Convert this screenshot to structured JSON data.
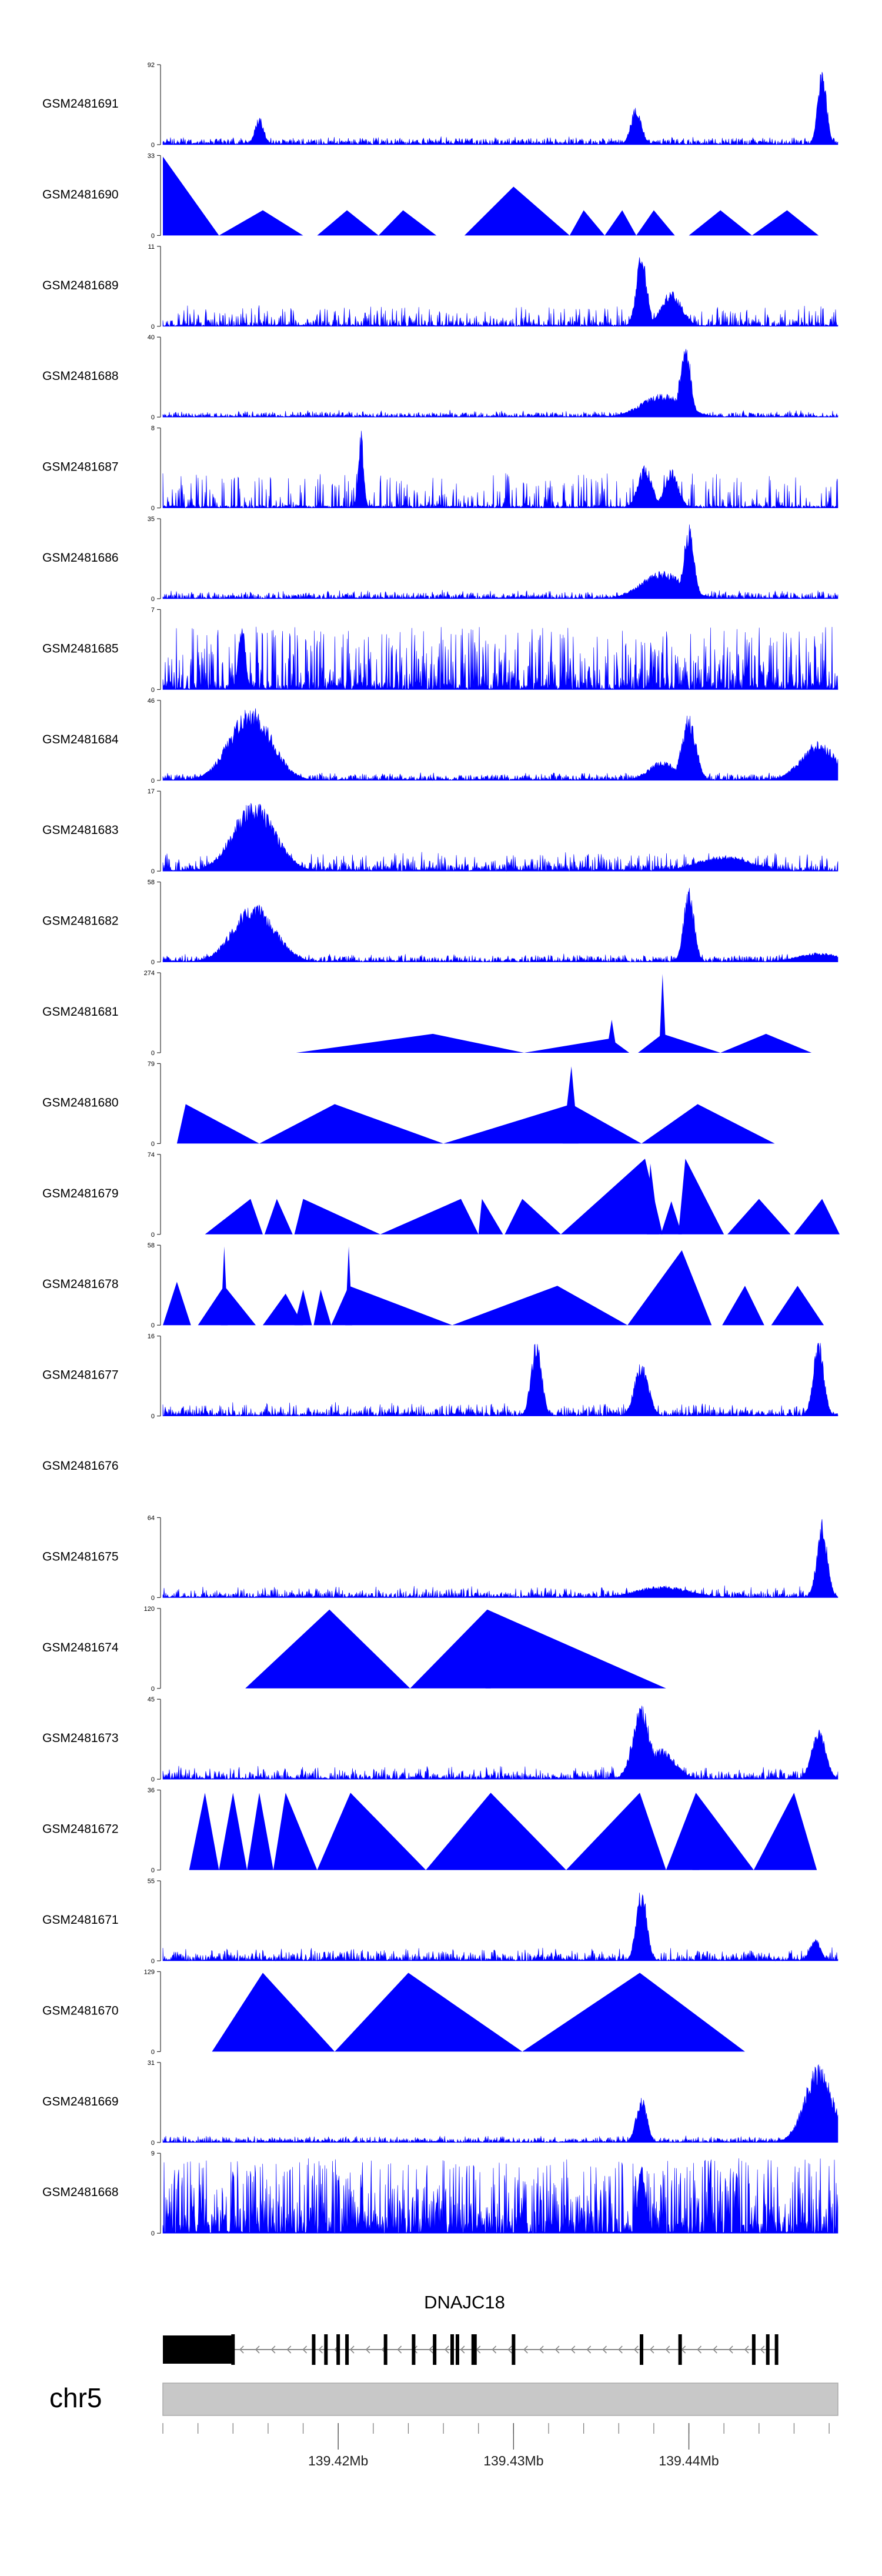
{
  "chart_data": {
    "type": "area",
    "title": "",
    "colors": {
      "track": "#0000ff",
      "gene": "#000000",
      "chrom_bar": "#c8c8c8",
      "axis": "#333333"
    },
    "x_range_mb": [
      139.41,
      139.4485
    ],
    "tracks": [
      {
        "name": "GSM2481691",
        "ymax_label": "92",
        "ymin_label": "0",
        "style": "noise",
        "base": 0.04,
        "noise": 0.05,
        "density": 0.6,
        "seed": 11,
        "peaks": [
          [
            139.4155,
            0.36,
            0.00025
          ],
          [
            139.437,
            0.5,
            0.0003
          ],
          [
            139.4476,
            1.0,
            0.00025
          ]
        ]
      },
      {
        "name": "GSM2481690",
        "ymax_label": "33",
        "ymin_label": "0",
        "style": "triangles",
        "triangles": [
          [
            139.41,
            139.41,
            139.4132,
            1.0
          ],
          [
            139.4132,
            139.4157,
            139.418,
            0.32
          ],
          [
            139.4188,
            139.4205,
            139.4223,
            0.32
          ],
          [
            139.4223,
            139.4237,
            139.4256,
            0.32
          ],
          [
            139.4272,
            139.43,
            139.4332,
            0.62
          ],
          [
            139.4332,
            139.434,
            139.4352,
            0.32
          ],
          [
            139.4352,
            139.4362,
            139.437,
            0.32
          ],
          [
            139.437,
            139.438,
            139.4392,
            0.32
          ],
          [
            139.44,
            139.4418,
            139.4436,
            0.32
          ],
          [
            139.4436,
            139.4456,
            139.4474,
            0.32
          ]
        ]
      },
      {
        "name": "GSM2481689",
        "ymax_label": "11",
        "ymin_label": "0",
        "style": "noise",
        "base": 0.05,
        "noise": 0.2,
        "density": 0.45,
        "seed": 23,
        "peaks": [
          [
            139.4373,
            0.95,
            0.0003
          ],
          [
            139.439,
            0.45,
            0.0006
          ]
        ]
      },
      {
        "name": "GSM2481688",
        "ymax_label": "40",
        "ymin_label": "0",
        "style": "noise",
        "base": 0.03,
        "noise": 0.05,
        "density": 0.5,
        "seed": 37,
        "peaks": [
          [
            139.4385,
            0.3,
            0.0012
          ],
          [
            139.4398,
            1.0,
            0.0003
          ]
        ]
      },
      {
        "name": "GSM2481687",
        "ymax_label": "8",
        "ymin_label": "0",
        "style": "spiky",
        "base": 0.02,
        "noise": 0.42,
        "density": 0.35,
        "seed": 41,
        "peaks": [
          [
            139.4213,
            1.0,
            0.00015
          ],
          [
            139.4375,
            0.55,
            0.0004
          ],
          [
            139.439,
            0.5,
            0.0004
          ]
        ]
      },
      {
        "name": "GSM2481686",
        "ymax_label": "35",
        "ymin_label": "0",
        "style": "noise",
        "base": 0.04,
        "noise": 0.06,
        "density": 0.5,
        "seed": 53,
        "peaks": [
          [
            139.4385,
            0.35,
            0.0012
          ],
          [
            139.44,
            0.95,
            0.0003
          ]
        ]
      },
      {
        "name": "GSM2481685",
        "ymax_label": "7",
        "ymin_label": "0",
        "style": "spiky",
        "base": 0.05,
        "noise": 0.75,
        "density": 0.65,
        "seed": 67,
        "peaks": [
          [
            139.4145,
            0.9,
            0.0002
          ]
        ]
      },
      {
        "name": "GSM2481684",
        "ymax_label": "46",
        "ymin_label": "0",
        "style": "noise",
        "base": 0.04,
        "noise": 0.05,
        "density": 0.55,
        "seed": 71,
        "peaks": [
          [
            139.415,
            0.95,
            0.0012
          ],
          [
            139.4385,
            0.25,
            0.0008
          ],
          [
            139.44,
            0.85,
            0.0004
          ],
          [
            139.4474,
            0.5,
            0.001
          ]
        ]
      },
      {
        "name": "GSM2481683",
        "ymax_label": "17",
        "ymin_label": "0",
        "style": "noise",
        "base": 0.05,
        "noise": 0.18,
        "density": 0.55,
        "seed": 83,
        "peaks": [
          [
            139.4152,
            0.9,
            0.0012
          ],
          [
            139.442,
            0.2,
            0.0015
          ]
        ]
      },
      {
        "name": "GSM2481682",
        "ymax_label": "58",
        "ymin_label": "0",
        "style": "noise",
        "base": 0.04,
        "noise": 0.05,
        "density": 0.5,
        "seed": 97,
        "peaks": [
          [
            139.4152,
            0.75,
            0.0012
          ],
          [
            139.44,
            0.95,
            0.0003
          ],
          [
            139.4474,
            0.12,
            0.0012
          ]
        ]
      },
      {
        "name": "GSM2481681",
        "ymax_label": "274",
        "ymin_label": "0",
        "style": "triangles",
        "triangles": [
          [
            139.4176,
            139.4254,
            139.4306,
            0.24
          ],
          [
            139.4306,
            139.4355,
            139.4366,
            0.18
          ],
          [
            139.4353,
            139.4356,
            139.4359,
            0.42
          ],
          [
            139.4371,
            139.4385,
            139.4418,
            0.24
          ],
          [
            139.4383,
            139.4385,
            139.4387,
            1.0
          ],
          [
            139.4418,
            139.4444,
            139.447,
            0.24
          ]
        ]
      },
      {
        "name": "GSM2481680",
        "ymax_label": "79",
        "ymin_label": "0",
        "style": "triangles",
        "triangles": [
          [
            139.4108,
            139.4113,
            139.4155,
            0.5
          ],
          [
            139.4155,
            139.4198,
            139.426,
            0.5
          ],
          [
            139.426,
            139.4333,
            139.4373,
            0.5
          ],
          [
            139.4328,
            139.4333,
            139.4337,
            0.98
          ],
          [
            139.4373,
            139.4405,
            139.4449,
            0.5
          ]
        ]
      },
      {
        "name": "GSM2481679",
        "ymax_label": "74",
        "ymin_label": "0",
        "style": "triangles",
        "triangles": [
          [
            139.4124,
            139.415,
            139.4157,
            0.45
          ],
          [
            139.4158,
            139.4165,
            139.4174,
            0.45
          ],
          [
            139.4175,
            139.418,
            139.4224,
            0.45
          ],
          [
            139.4224,
            139.427,
            139.428,
            0.45
          ],
          [
            139.428,
            139.4282,
            139.4294,
            0.45
          ],
          [
            139.4295,
            139.4305,
            139.4327,
            0.45
          ],
          [
            139.4327,
            139.4375,
            139.4385,
            0.96
          ],
          [
            139.4376,
            139.4378,
            139.4383,
            0.9
          ],
          [
            139.4384,
            139.439,
            139.4396,
            0.42
          ],
          [
            139.4394,
            139.4398,
            139.442,
            0.96
          ],
          [
            139.4422,
            139.444,
            139.4458,
            0.45
          ],
          [
            139.446,
            139.4476,
            139.4486,
            0.45
          ]
        ]
      },
      {
        "name": "GSM2481678",
        "ymax_label": "58",
        "ymin_label": "0",
        "style": "triangles",
        "triangles": [
          [
            139.41,
            139.4108,
            139.4116,
            0.55
          ],
          [
            139.412,
            139.4135,
            139.4153,
            0.5
          ],
          [
            139.4133,
            139.4135,
            139.4137,
            1.0
          ],
          [
            139.4157,
            139.417,
            139.418,
            0.4
          ],
          [
            139.4175,
            139.418,
            139.4185,
            0.45
          ],
          [
            139.4186,
            139.419,
            139.4196,
            0.45
          ],
          [
            139.4196,
            139.4206,
            139.4265,
            0.5
          ],
          [
            139.4204,
            139.4206,
            139.4208,
            1.0
          ],
          [
            139.4265,
            139.4325,
            139.4365,
            0.5
          ],
          [
            139.4365,
            139.4396,
            139.4413,
            0.95
          ],
          [
            139.4419,
            139.4432,
            139.4443,
            0.5
          ],
          [
            139.4447,
            139.4462,
            139.4477,
            0.5
          ]
        ]
      },
      {
        "name": "GSM2481677",
        "ymax_label": "16",
        "ymin_label": "0",
        "style": "noise",
        "base": 0.04,
        "noise": 0.12,
        "density": 0.55,
        "seed": 101,
        "peaks": [
          [
            139.4313,
            1.0,
            0.0003
          ],
          [
            139.4373,
            0.7,
            0.0004
          ],
          [
            139.4474,
            1.0,
            0.0003
          ]
        ]
      },
      {
        "name": "GSM2481676",
        "style": "empty"
      },
      {
        "name": "GSM2481675",
        "ymax_label": "64",
        "ymin_label": "0",
        "style": "noise",
        "base": 0.04,
        "noise": 0.1,
        "density": 0.5,
        "seed": 113,
        "peaks": [
          [
            139.4385,
            0.15,
            0.0015
          ],
          [
            139.4476,
            1.0,
            0.0003
          ]
        ]
      },
      {
        "name": "GSM2481674",
        "ymax_label": "120",
        "ymin_label": "0",
        "style": "triangles",
        "triangles": [
          [
            139.4147,
            139.4195,
            139.4241,
            1.0
          ],
          [
            139.4241,
            139.4285,
            139.4387,
            1.0
          ],
          [
            139.4284,
            139.4285,
            139.4287,
            0.65
          ]
        ]
      },
      {
        "name": "GSM2481673",
        "ymax_label": "45",
        "ymin_label": "0",
        "style": "noise",
        "base": 0.04,
        "noise": 0.12,
        "density": 0.5,
        "seed": 127,
        "peaks": [
          [
            139.4373,
            0.95,
            0.0005
          ],
          [
            139.4384,
            0.4,
            0.0008
          ],
          [
            139.4474,
            0.65,
            0.0004
          ]
        ]
      },
      {
        "name": "GSM2481672",
        "ymax_label": "36",
        "ymin_label": "0",
        "style": "triangles",
        "triangles": [
          [
            139.4115,
            139.4124,
            139.4132,
            0.98
          ],
          [
            139.4132,
            139.414,
            139.4148,
            0.98
          ],
          [
            139.4148,
            139.4155,
            139.4163,
            0.98
          ],
          [
            139.4163,
            139.417,
            139.4188,
            0.98
          ],
          [
            139.4188,
            139.4207,
            139.425,
            0.98
          ],
          [
            139.425,
            139.4287,
            139.433,
            0.98
          ],
          [
            139.433,
            139.4372,
            139.4387,
            0.98
          ],
          [
            139.4387,
            139.4404,
            139.4437,
            0.98
          ],
          [
            139.4402,
            139.4404,
            139.4406,
            0.85
          ],
          [
            139.4437,
            139.446,
            139.4473,
            0.98
          ]
        ]
      },
      {
        "name": "GSM2481671",
        "ymax_label": "55",
        "ymin_label": "0",
        "style": "noise",
        "base": 0.05,
        "noise": 0.1,
        "density": 0.5,
        "seed": 139,
        "peaks": [
          [
            139.4373,
            0.95,
            0.0003
          ],
          [
            139.4472,
            0.3,
            0.0003
          ]
        ]
      },
      {
        "name": "GSM2481670",
        "ymax_label": "129",
        "ymin_label": "0",
        "style": "triangles",
        "triangles": [
          [
            139.4128,
            139.4157,
            139.4198,
            1.0
          ],
          [
            139.4198,
            139.424,
            139.4305,
            1.0
          ],
          [
            139.4305,
            139.4372,
            139.4432,
            1.0
          ]
        ]
      },
      {
        "name": "GSM2481669",
        "ymax_label": "31",
        "ymin_label": "0",
        "style": "noise",
        "base": 0.03,
        "noise": 0.05,
        "density": 0.5,
        "seed": 151,
        "peaks": [
          [
            139.4373,
            0.6,
            0.0003
          ],
          [
            139.4474,
            1.0,
            0.0008
          ]
        ]
      },
      {
        "name": "GSM2481668",
        "ymax_label": "9",
        "ymin_label": "0",
        "style": "spiky",
        "base": 0.1,
        "noise": 0.85,
        "density": 0.7,
        "seed": 163,
        "peaks": [
          [
            139.4373,
            0.95,
            0.0002
          ]
        ]
      }
    ],
    "gene": {
      "label": "DNAJC18",
      "strand": "-",
      "start_mb": 139.41,
      "end_mb": 139.4451,
      "utr_mb": [
        139.41,
        139.414
      ],
      "exons_mb": [
        139.414,
        139.4186,
        139.4193,
        139.42,
        139.4205,
        139.4227,
        139.4243,
        139.4255,
        139.4265,
        139.4268,
        139.4277,
        139.4278,
        139.43,
        139.4373,
        139.4395,
        139.4437,
        139.4445,
        139.445
      ]
    },
    "ideogram": {
      "label": "chr5",
      "ticks_mb": [
        139.41,
        139.412,
        139.414,
        139.416,
        139.418,
        139.42,
        139.422,
        139.424,
        139.426,
        139.428,
        139.43,
        139.432,
        139.434,
        139.436,
        139.438,
        139.44,
        139.442,
        139.444,
        139.446,
        139.448
      ],
      "labeled_ticks": [
        {
          "mb": 139.42,
          "label": "139.42Mb"
        },
        {
          "mb": 139.43,
          "label": "139.43Mb"
        },
        {
          "mb": 139.44,
          "label": "139.44Mb"
        }
      ]
    }
  }
}
